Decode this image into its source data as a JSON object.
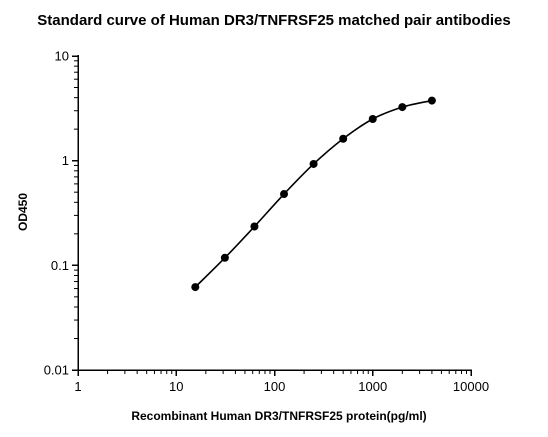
{
  "chart_data": {
    "type": "line",
    "title": "Standard curve of Human DR3/TNFRSF25 matched pair antibodies",
    "xlabel": "Recombinant Human DR3/TNFRSF25 protein(pg/ml)",
    "ylabel": "OD450",
    "x_scale": "log",
    "y_scale": "log",
    "xlim": [
      1,
      10000
    ],
    "ylim": [
      0.01,
      10
    ],
    "x_ticks": [
      "1",
      "10",
      "100",
      "1000",
      "10000"
    ],
    "y_ticks": [
      "0.01",
      "0.1",
      "1",
      "10"
    ],
    "grid": false,
    "series": [
      {
        "x": [
          15.625,
          31.25,
          62.5,
          125,
          250,
          500,
          1000,
          2000,
          4000
        ],
        "y": [
          0.062,
          0.118,
          0.235,
          0.48,
          0.93,
          1.62,
          2.5,
          3.25,
          3.75
        ],
        "color": "#000000"
      }
    ]
  }
}
